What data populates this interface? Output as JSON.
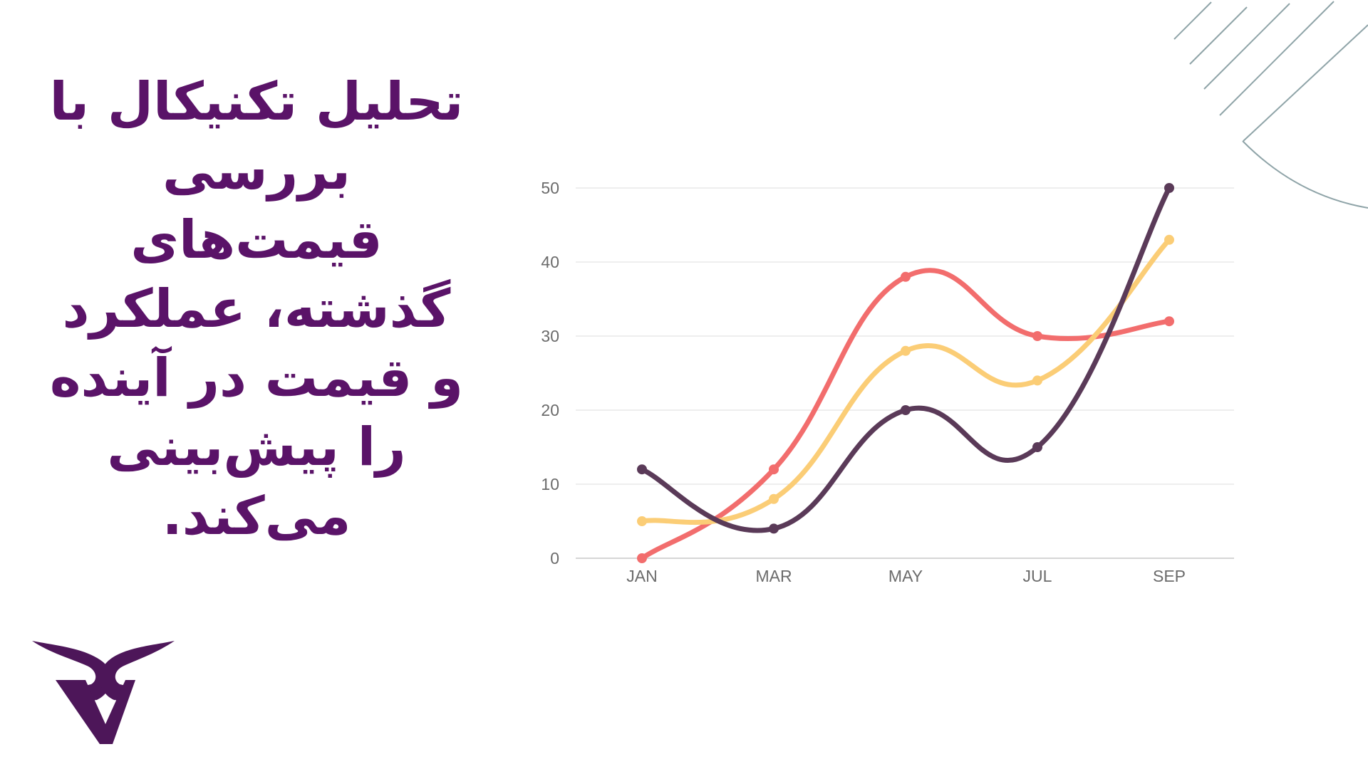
{
  "headline": "تحلیل تکنیکال با بررسی قیمت‌های گذشته، عملکرد و قیمت در آینده را پیش‌بینی می‌کند.",
  "colors": {
    "headline": "#5a1368",
    "logo": "#4d1659",
    "decoration": "#8fa4a8",
    "grid": "#dcdcdc"
  },
  "logo_icon": "brand-mark-icon",
  "chart_data": {
    "type": "line",
    "smooth": true,
    "categories": [
      "JAN",
      "MAR",
      "MAY",
      "JUL",
      "SEP"
    ],
    "y_ticks": [
      "0",
      "10",
      "20",
      "30",
      "40",
      "50"
    ],
    "ylim": [
      0,
      50
    ],
    "grid": true,
    "legend": "none",
    "series": [
      {
        "color": "#f26d6d",
        "values": [
          0,
          12,
          38,
          30,
          32
        ]
      },
      {
        "color": "#fbcd76",
        "values": [
          5,
          8,
          28,
          24,
          43
        ]
      },
      {
        "color": "#5a3a58",
        "values": [
          12,
          4,
          20,
          15,
          50
        ]
      }
    ]
  }
}
